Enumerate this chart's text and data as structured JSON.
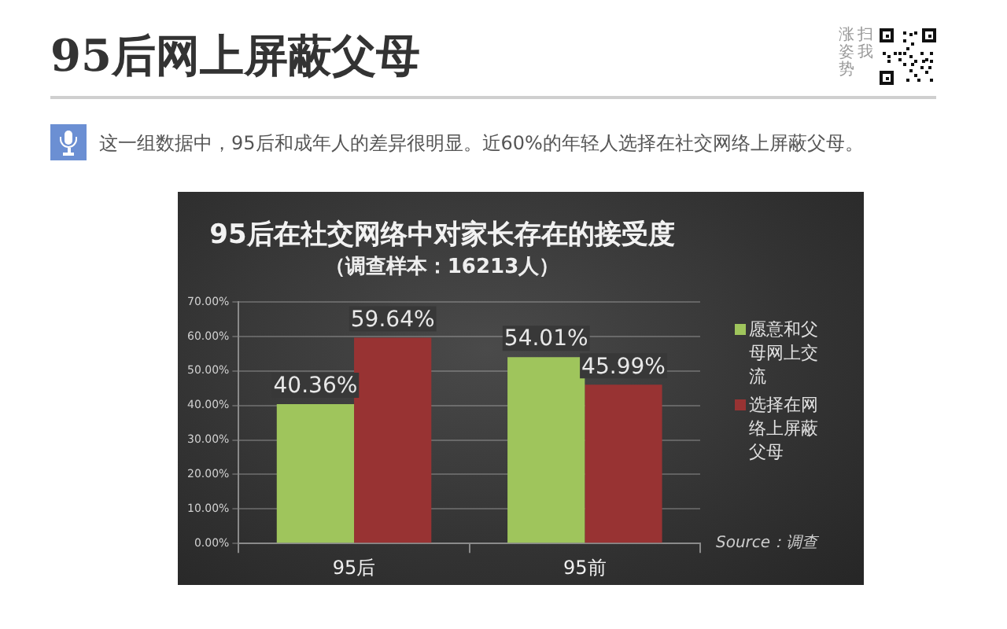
{
  "chart_data": {
    "type": "bar",
    "title": "95后在社交网络中对家长存在的接受度",
    "subtitle": "（调查样本：16213人）",
    "annotations": [
      "95后网上屏蔽父母",
      "这一组数据中，95后和成年人的差异很明显。近60%的年轻人选择在社交网络上屏蔽父母。",
      "扫我",
      "涨姿势",
      "Source：调查"
    ],
    "categories": [
      "95后",
      "95前"
    ],
    "series": [
      {
        "name": "愿意和父母网上交流",
        "color": "#9fc55c",
        "values": [
          40.36,
          54.01
        ],
        "value_labels": [
          "40.36%",
          "54.01%"
        ]
      },
      {
        "name": "选择在网络上屏蔽父母",
        "color": "#983333",
        "values": [
          59.64,
          45.99
        ],
        "value_labels": [
          "59.64%",
          "45.99%"
        ]
      }
    ],
    "ylim": [
      0,
      70
    ],
    "yticks": [
      {
        "value": 0,
        "label": "0.00%"
      },
      {
        "value": 10,
        "label": "10.00%"
      },
      {
        "value": 20,
        "label": "20.00%"
      },
      {
        "value": 30,
        "label": "30.00%"
      },
      {
        "value": 40,
        "label": "40.00%"
      },
      {
        "value": 50,
        "label": "50.00%"
      },
      {
        "value": 60,
        "label": "60.00%"
      },
      {
        "value": 70,
        "label": "70.00%"
      }
    ],
    "grid": "y",
    "legend": "right"
  }
}
